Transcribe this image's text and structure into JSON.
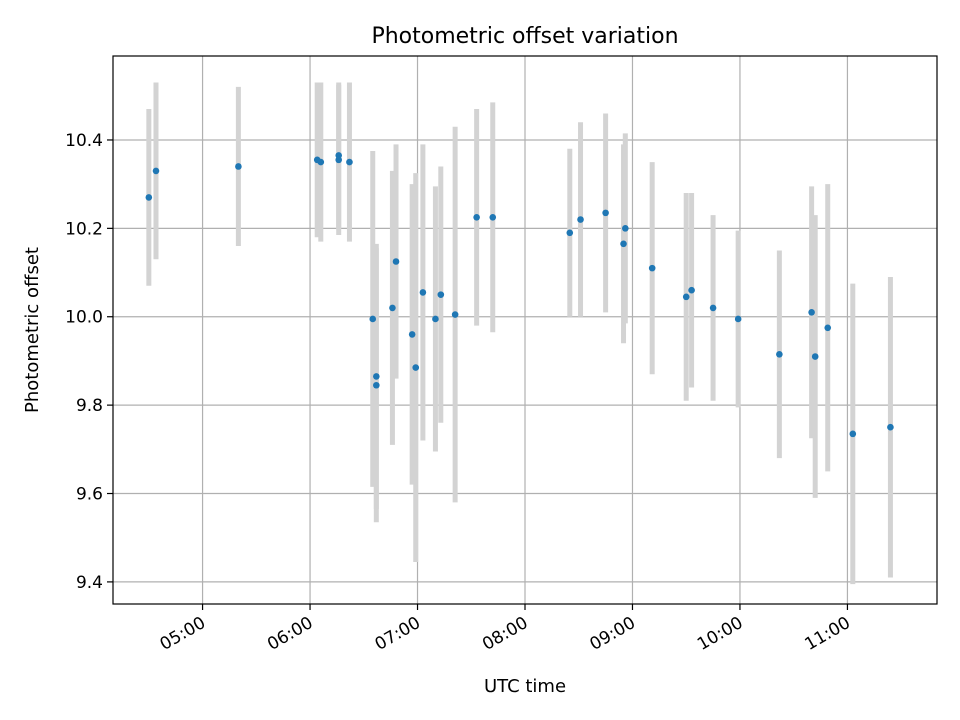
{
  "chart_data": {
    "type": "scatter",
    "title": "Photometric offset variation",
    "xlabel": "UTC time",
    "ylabel": "Photometric offset",
    "x_is_time": true,
    "xlim": [
      "04:10",
      "11:50"
    ],
    "ylim": [
      9.35,
      10.59
    ],
    "xticks": [
      "05:00",
      "06:00",
      "07:00",
      "08:00",
      "09:00",
      "10:00",
      "11:00"
    ],
    "yticks": [
      "9.4",
      "9.6",
      "9.8",
      "10.0",
      "10.2",
      "10.4"
    ],
    "grid": true,
    "marker_color": "#1f77b4",
    "errorbar_color": "#d3d3d3",
    "series": [
      {
        "points": [
          {
            "x": "04:30",
            "y": 10.27,
            "err": 0.2
          },
          {
            "x": "04:34",
            "y": 10.33,
            "err": 0.2
          },
          {
            "x": "05:20",
            "y": 10.34,
            "err": 0.18
          },
          {
            "x": "06:04",
            "y": 10.355,
            "err": 0.175
          },
          {
            "x": "06:06",
            "y": 10.35,
            "err": 0.18
          },
          {
            "x": "06:16",
            "y": 10.365,
            "err": 0.165
          },
          {
            "x": "06:16",
            "y": 10.355,
            "err": 0.17
          },
          {
            "x": "06:22",
            "y": 10.35,
            "err": 0.18
          },
          {
            "x": "06:35",
            "y": 9.995,
            "err": 0.38
          },
          {
            "x": "06:37",
            "y": 9.865,
            "err": 0.3
          },
          {
            "x": "06:37",
            "y": 9.845,
            "err": 0.31
          },
          {
            "x": "06:46",
            "y": 10.02,
            "err": 0.31
          },
          {
            "x": "06:48",
            "y": 10.125,
            "err": 0.265
          },
          {
            "x": "06:57",
            "y": 9.96,
            "err": 0.34
          },
          {
            "x": "06:59",
            "y": 9.885,
            "err": 0.44
          },
          {
            "x": "07:03",
            "y": 10.055,
            "err": 0.335
          },
          {
            "x": "07:10",
            "y": 9.995,
            "err": 0.3
          },
          {
            "x": "07:13",
            "y": 10.05,
            "err": 0.29
          },
          {
            "x": "07:21",
            "y": 10.005,
            "err": 0.425
          },
          {
            "x": "07:33",
            "y": 10.225,
            "err": 0.245
          },
          {
            "x": "07:42",
            "y": 10.225,
            "err": 0.26
          },
          {
            "x": "08:25",
            "y": 10.19,
            "err": 0.19
          },
          {
            "x": "08:31",
            "y": 10.22,
            "err": 0.22
          },
          {
            "x": "08:45",
            "y": 10.235,
            "err": 0.225
          },
          {
            "x": "08:55",
            "y": 10.165,
            "err": 0.225
          },
          {
            "x": "08:56",
            "y": 10.2,
            "err": 0.215
          },
          {
            "x": "09:11",
            "y": 10.11,
            "err": 0.24
          },
          {
            "x": "09:30",
            "y": 10.045,
            "err": 0.235
          },
          {
            "x": "09:33",
            "y": 10.06,
            "err": 0.22
          },
          {
            "x": "09:45",
            "y": 10.02,
            "err": 0.21
          },
          {
            "x": "09:59",
            "y": 9.995,
            "err": 0.2
          },
          {
            "x": "10:22",
            "y": 9.915,
            "err": 0.235
          },
          {
            "x": "10:40",
            "y": 10.01,
            "err": 0.285
          },
          {
            "x": "10:42",
            "y": 9.91,
            "err": 0.32
          },
          {
            "x": "10:49",
            "y": 9.975,
            "err": 0.325
          },
          {
            "x": "11:03",
            "y": 9.735,
            "err": 0.34
          },
          {
            "x": "11:24",
            "y": 9.75,
            "err": 0.34
          }
        ]
      }
    ]
  }
}
